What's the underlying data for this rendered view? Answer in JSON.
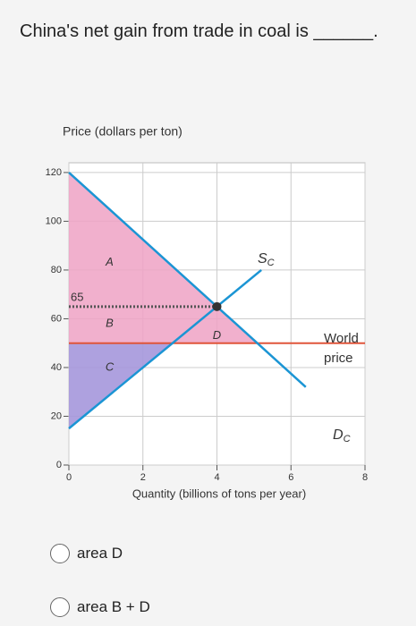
{
  "question": "China's net gain from trade in coal is ______.",
  "chart_data": {
    "type": "line",
    "ylabel": "Price (dollars per ton)",
    "xlabel": "Quantity (billions of tons per year)",
    "xlim": [
      0,
      8
    ],
    "ylim": [
      0,
      124
    ],
    "xticks": [
      0,
      2,
      4,
      6,
      8
    ],
    "yticks": [
      0,
      20,
      40,
      60,
      80,
      100,
      120
    ],
    "grid": true,
    "series": [
      {
        "x": [
          0,
          6.4
        ],
        "values": [
          120,
          32
        ],
        "color": "#1b95d4"
      },
      {
        "x": [
          0,
          5.2
        ],
        "values": [
          15,
          80
        ],
        "color": "#1b95d4"
      }
    ],
    "supply_label": "S",
    "supply_label_sub": "C",
    "demand_label": "D",
    "demand_label_sub": "C",
    "world_price": 50,
    "world_price_label": "World price",
    "world_price_color": "#e0553a",
    "domestic_price": 65,
    "areas": [
      "A",
      "B",
      "C",
      "D"
    ],
    "upper_color": "#eea2c4",
    "lower_color": "#a597dc"
  },
  "options": [
    "area D",
    "area B + D"
  ]
}
